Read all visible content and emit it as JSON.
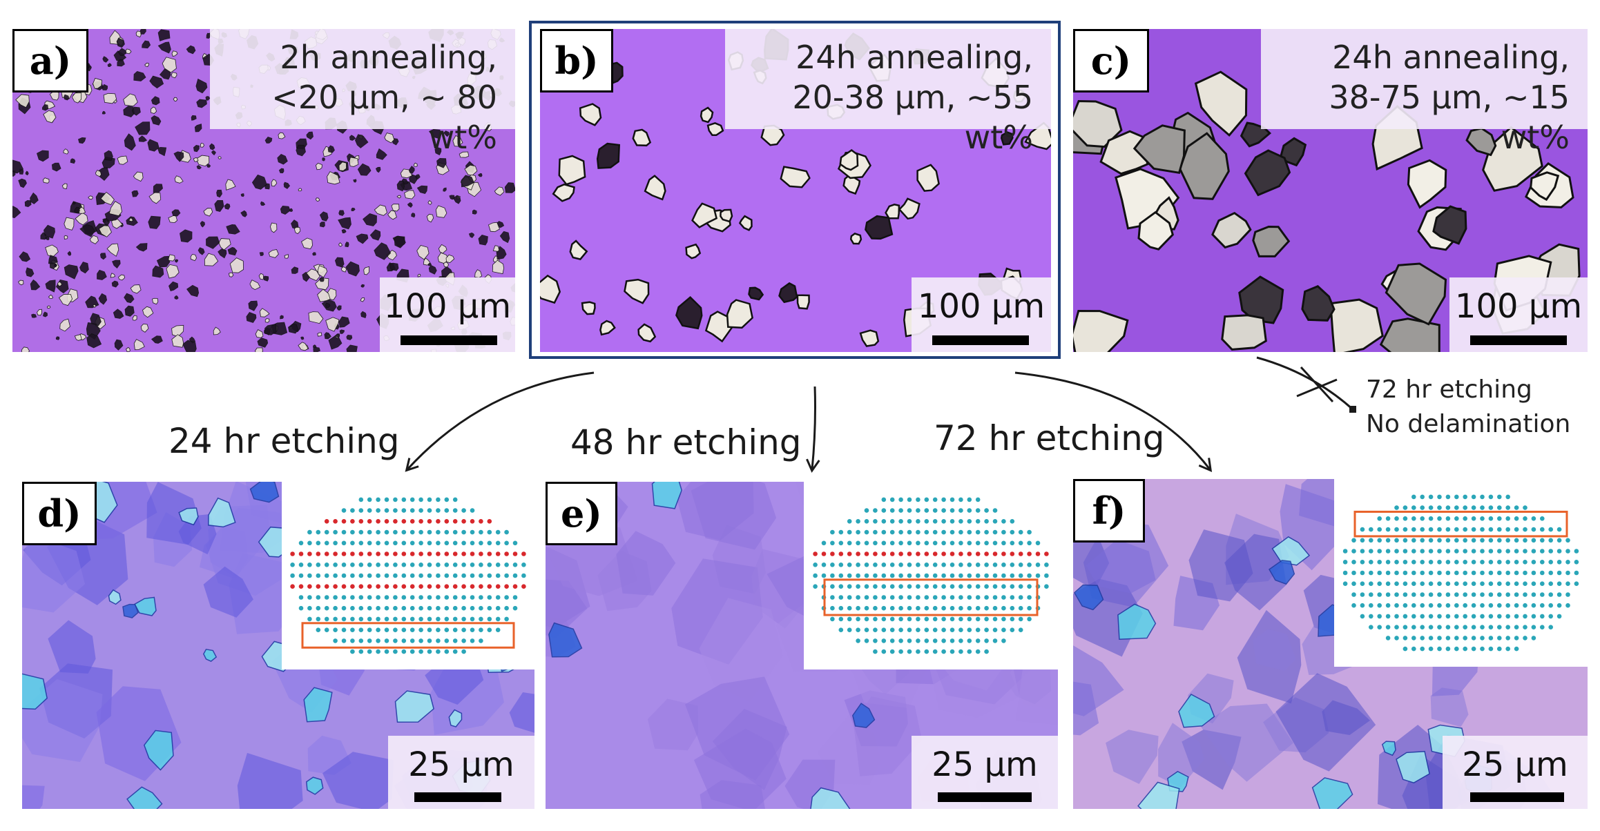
{
  "panels": {
    "a": {
      "letter": "a)",
      "caption_line1": "2h annealing,",
      "caption_line2": "<20 µm, ~ 80 wt%",
      "scale": "100 µm"
    },
    "b": {
      "letter": "b)",
      "caption_line1": "24h annealing,",
      "caption_line2": "20-38 µm, ~55 wt%",
      "scale": "100 µm"
    },
    "c": {
      "letter": "c)",
      "caption_line1": "24h annealing,",
      "caption_line2": "38-75 µm, ~15 wt%",
      "scale": "100 µm"
    },
    "d": {
      "letter": "d)",
      "scale": "25 µm"
    },
    "e": {
      "letter": "e)",
      "scale": "25 µm"
    },
    "f": {
      "letter": "f)",
      "scale": "25 µm"
    }
  },
  "arrows": {
    "etch24": "24 hr etching",
    "etch48": "48 hr etching",
    "etch72": "72 hr etching",
    "no_delam_line1": "72 hr etching",
    "no_delam_line2": "No delamination"
  },
  "colors": {
    "substrate_a": "#b06ee6",
    "substrate_b": "#b26ef2",
    "substrate_c": "#9a55e0",
    "substrate_d": "#a58de6",
    "substrate_e": "#a98be8",
    "substrate_f": "#c8a6e0",
    "highlight_box": "#e8622a",
    "atom_teal": "#2aa6b8",
    "atom_red": "#d8282c",
    "panel_b_frame": "#1f3f7a"
  }
}
